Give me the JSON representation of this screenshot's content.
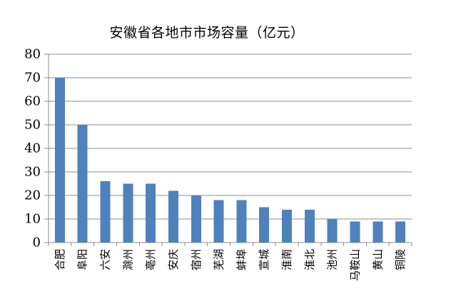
{
  "chart_data": {
    "type": "bar",
    "title": "安徽省各地市市场容量（亿元）",
    "categories": [
      "合肥",
      "阜阳",
      "六安",
      "滁州",
      "亳州",
      "安庆",
      "宿州",
      "芜湖",
      "蚌埠",
      "宣城",
      "淮南",
      "淮北",
      "池州",
      "马鞍山",
      "黄山",
      "铜陵"
    ],
    "values": [
      70,
      50,
      26,
      25,
      25,
      22,
      20,
      18,
      18,
      15,
      14,
      14,
      10,
      9,
      9,
      9
    ],
    "xlabel": "",
    "ylabel": "",
    "ylim": [
      0,
      80
    ],
    "yticks": [
      0,
      10,
      20,
      30,
      40,
      50,
      60,
      70,
      80
    ],
    "ytick_labels": [
      "0",
      "10",
      "20",
      "30",
      "40",
      "50",
      "60",
      "70",
      "80"
    ],
    "grid": "horizontal",
    "legend": "none",
    "x_label_rotation_deg": -90,
    "bar_color": "#4F81BD",
    "gridline_color": "#8C8C8C",
    "axis_color": "#8C8C8C",
    "text_color": "#000000",
    "background_color": "#FFFFFF"
  }
}
